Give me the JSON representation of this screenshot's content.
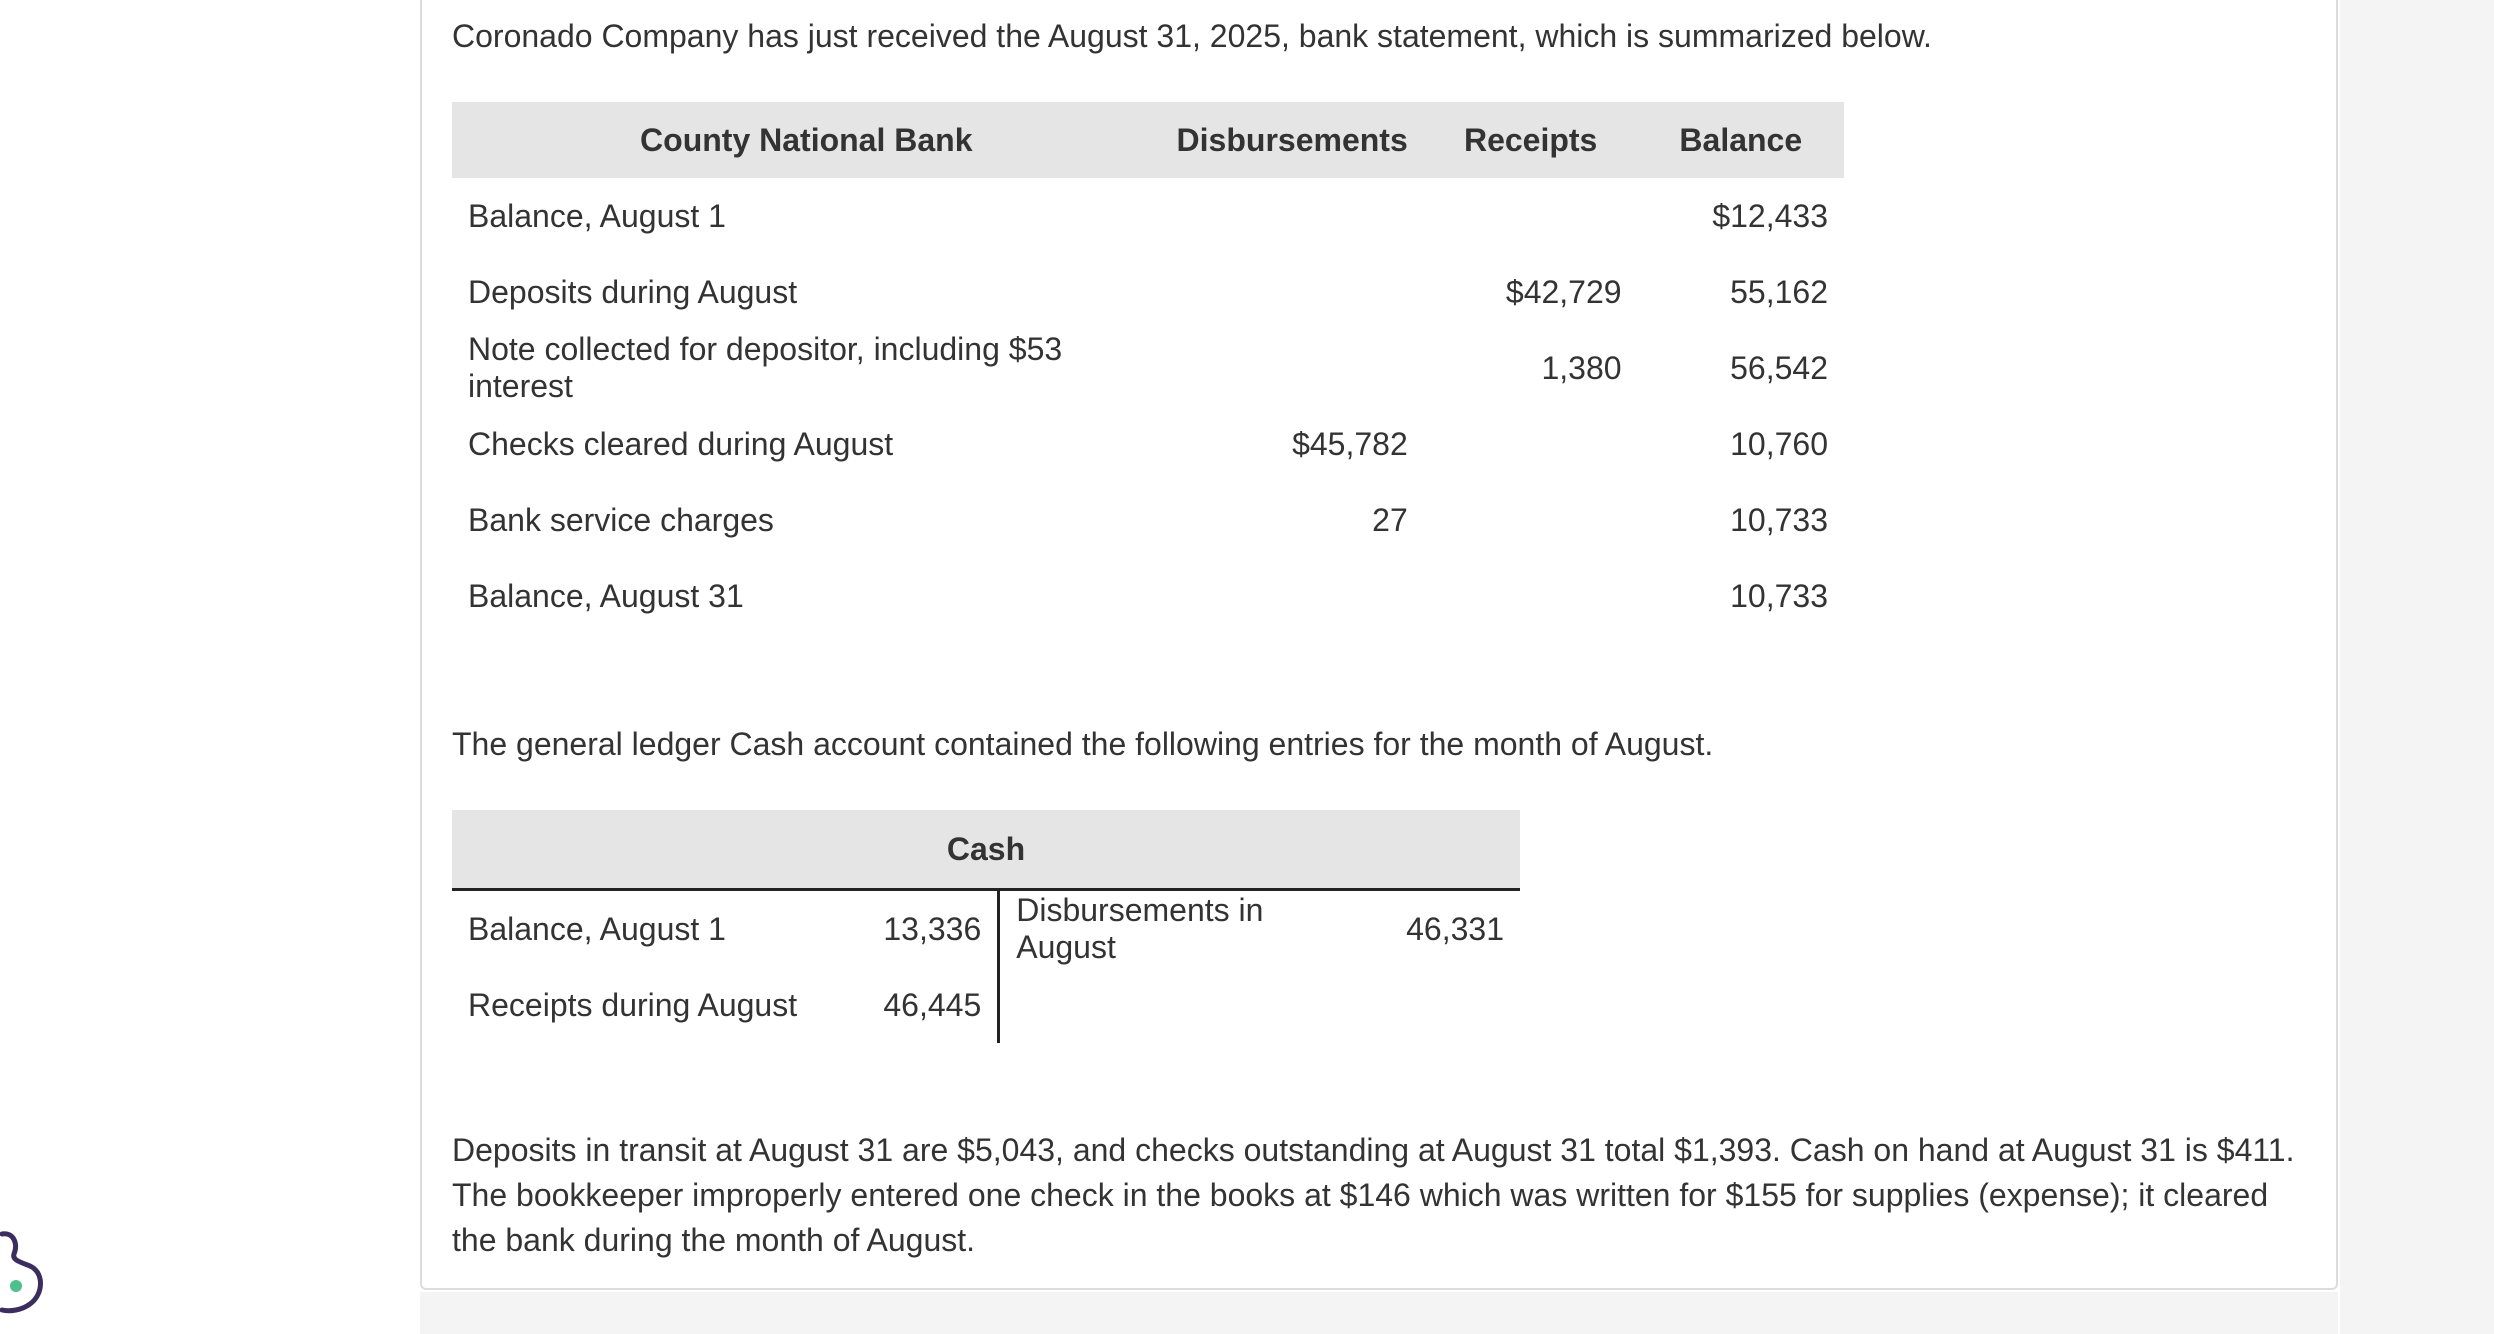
{
  "intro_text": "Coronado Company has just received the August 31, 2025, bank statement, which is summarized below.",
  "bank_statement": {
    "headers": {
      "bank_name": "County National Bank",
      "disbursements": "Disbursements",
      "receipts": "Receipts",
      "balance": "Balance"
    },
    "rows": [
      {
        "description": "Balance, August 1",
        "disbursements": "",
        "receipts": "",
        "balance": "$12,433"
      },
      {
        "description": "Deposits during August",
        "disbursements": "",
        "receipts": "$42,729",
        "balance": "55,162"
      },
      {
        "description": "Note collected for depositor, including $53 interest",
        "disbursements": "",
        "receipts": "1,380",
        "balance": "56,542"
      },
      {
        "description": "Checks cleared during August",
        "disbursements": "$45,782",
        "receipts": "",
        "balance": "10,760"
      },
      {
        "description": "Bank service charges",
        "disbursements": "27",
        "receipts": "",
        "balance": "10,733"
      },
      {
        "description": "Balance, August 31",
        "disbursements": "",
        "receipts": "",
        "balance": "10,733"
      }
    ]
  },
  "ledger_intro_text": "The general ledger Cash account contained the following entries for the month of August.",
  "cash_account": {
    "title": "Cash",
    "rows": [
      {
        "left_desc": "Balance, August 1",
        "left_amount": "13,336",
        "right_desc": "Disbursements in August",
        "right_amount": "46,331"
      },
      {
        "left_desc": "Receipts during August",
        "left_amount": "46,445",
        "right_desc": "",
        "right_amount": ""
      }
    ]
  },
  "note_text": "Deposits in transit at August 31 are $5,043, and checks outstanding at August 31 total $1,393. Cash on hand at August 31 is $411. The bookkeeper improperly entered one check in the books at $146 which was written for $155 for supplies (expense); it cleared the bank during the month of August.",
  "colors": {
    "header_bg": "#e5e5e5",
    "text": "#333333",
    "logo_stroke": "#3b2d5e",
    "logo_dot": "#4fc08d"
  },
  "icons": {
    "logo": "brand-logo-icon"
  }
}
